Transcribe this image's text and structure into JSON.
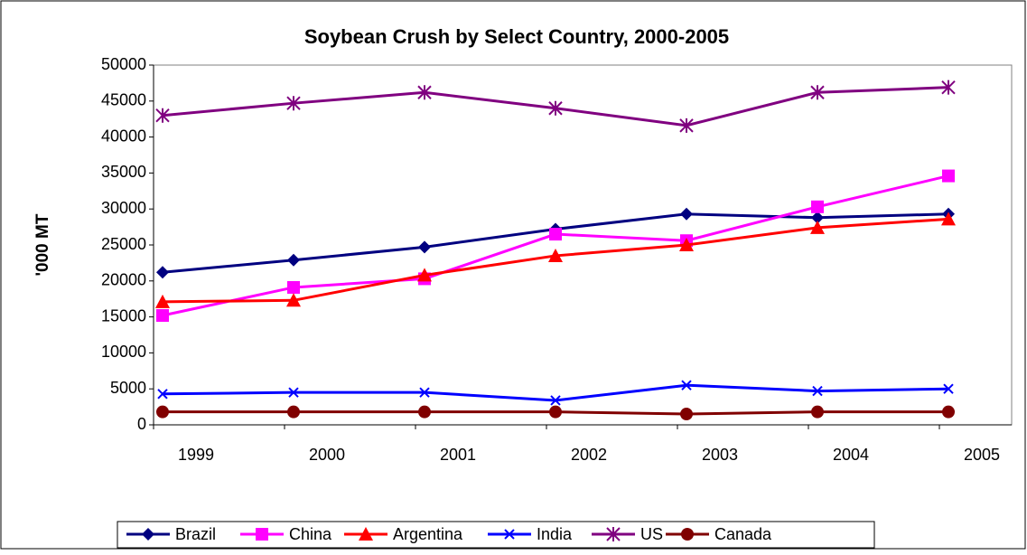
{
  "chart_data": {
    "type": "line",
    "title": "Soybean Crush by Select Country, 2000-2005",
    "y_label": "'000 MT",
    "categories": [
      "1999",
      "2000",
      "2001",
      "2002",
      "2003",
      "2004",
      "2005"
    ],
    "ylim": [
      0,
      50000
    ],
    "yticks": [
      0,
      5000,
      10000,
      15000,
      20000,
      25000,
      30000,
      35000,
      40000,
      45000,
      50000
    ],
    "legend": "bottom",
    "series": [
      {
        "name": "Brazil",
        "color": "#000080",
        "marker": "diamond",
        "values": [
          21200,
          22900,
          24700,
          27200,
          29300,
          28800,
          29300
        ]
      },
      {
        "name": "China",
        "color": "#FF00FF",
        "marker": "square",
        "values": [
          15200,
          19100,
          20300,
          26500,
          25600,
          30300,
          34600
        ]
      },
      {
        "name": "Argentina",
        "color": "#FF0000",
        "marker": "triangle",
        "values": [
          17100,
          17300,
          20800,
          23500,
          25000,
          27400,
          28600
        ]
      },
      {
        "name": "India",
        "color": "#0000FF",
        "marker": "x",
        "values": [
          4300,
          4500,
          4500,
          3400,
          5500,
          4700,
          5000
        ]
      },
      {
        "name": "US",
        "color": "#800080",
        "marker": "star",
        "values": [
          43000,
          44700,
          46200,
          44000,
          41600,
          46200,
          46900
        ]
      },
      {
        "name": "Canada",
        "color": "#800000",
        "marker": "circle",
        "values": [
          1800,
          1800,
          1800,
          1800,
          1500,
          1800,
          1800
        ]
      }
    ]
  }
}
